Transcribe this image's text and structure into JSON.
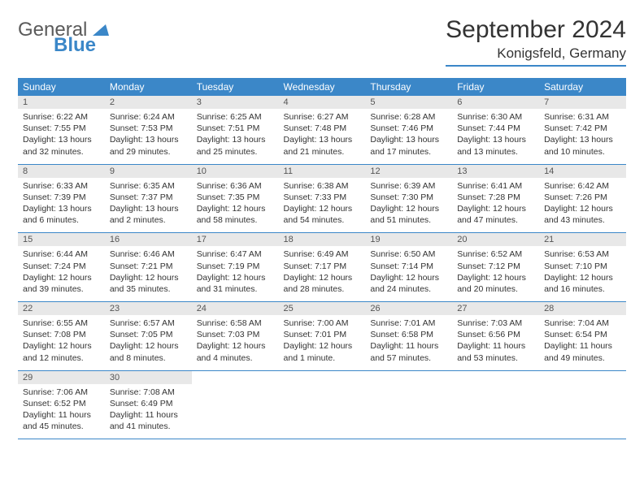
{
  "logo": {
    "line1": "General",
    "line2": "Blue"
  },
  "title": "September 2024",
  "location": "Konigsfeld, Germany",
  "colors": {
    "brand": "#3b87c8",
    "header_bg": "#3b87c8",
    "header_text": "#ffffff",
    "daynum_bg": "#e8e8e8",
    "text": "#333333",
    "logo_gray": "#5a5a5a"
  },
  "weekdays": [
    "Sunday",
    "Monday",
    "Tuesday",
    "Wednesday",
    "Thursday",
    "Friday",
    "Saturday"
  ],
  "weeks": [
    [
      {
        "n": "1",
        "sr": "Sunrise: 6:22 AM",
        "ss": "Sunset: 7:55 PM",
        "dl": "Daylight: 13 hours and 32 minutes."
      },
      {
        "n": "2",
        "sr": "Sunrise: 6:24 AM",
        "ss": "Sunset: 7:53 PM",
        "dl": "Daylight: 13 hours and 29 minutes."
      },
      {
        "n": "3",
        "sr": "Sunrise: 6:25 AM",
        "ss": "Sunset: 7:51 PM",
        "dl": "Daylight: 13 hours and 25 minutes."
      },
      {
        "n": "4",
        "sr": "Sunrise: 6:27 AM",
        "ss": "Sunset: 7:48 PM",
        "dl": "Daylight: 13 hours and 21 minutes."
      },
      {
        "n": "5",
        "sr": "Sunrise: 6:28 AM",
        "ss": "Sunset: 7:46 PM",
        "dl": "Daylight: 13 hours and 17 minutes."
      },
      {
        "n": "6",
        "sr": "Sunrise: 6:30 AM",
        "ss": "Sunset: 7:44 PM",
        "dl": "Daylight: 13 hours and 13 minutes."
      },
      {
        "n": "7",
        "sr": "Sunrise: 6:31 AM",
        "ss": "Sunset: 7:42 PM",
        "dl": "Daylight: 13 hours and 10 minutes."
      }
    ],
    [
      {
        "n": "8",
        "sr": "Sunrise: 6:33 AM",
        "ss": "Sunset: 7:39 PM",
        "dl": "Daylight: 13 hours and 6 minutes."
      },
      {
        "n": "9",
        "sr": "Sunrise: 6:35 AM",
        "ss": "Sunset: 7:37 PM",
        "dl": "Daylight: 13 hours and 2 minutes."
      },
      {
        "n": "10",
        "sr": "Sunrise: 6:36 AM",
        "ss": "Sunset: 7:35 PM",
        "dl": "Daylight: 12 hours and 58 minutes."
      },
      {
        "n": "11",
        "sr": "Sunrise: 6:38 AM",
        "ss": "Sunset: 7:33 PM",
        "dl": "Daylight: 12 hours and 54 minutes."
      },
      {
        "n": "12",
        "sr": "Sunrise: 6:39 AM",
        "ss": "Sunset: 7:30 PM",
        "dl": "Daylight: 12 hours and 51 minutes."
      },
      {
        "n": "13",
        "sr": "Sunrise: 6:41 AM",
        "ss": "Sunset: 7:28 PM",
        "dl": "Daylight: 12 hours and 47 minutes."
      },
      {
        "n": "14",
        "sr": "Sunrise: 6:42 AM",
        "ss": "Sunset: 7:26 PM",
        "dl": "Daylight: 12 hours and 43 minutes."
      }
    ],
    [
      {
        "n": "15",
        "sr": "Sunrise: 6:44 AM",
        "ss": "Sunset: 7:24 PM",
        "dl": "Daylight: 12 hours and 39 minutes."
      },
      {
        "n": "16",
        "sr": "Sunrise: 6:46 AM",
        "ss": "Sunset: 7:21 PM",
        "dl": "Daylight: 12 hours and 35 minutes."
      },
      {
        "n": "17",
        "sr": "Sunrise: 6:47 AM",
        "ss": "Sunset: 7:19 PM",
        "dl": "Daylight: 12 hours and 31 minutes."
      },
      {
        "n": "18",
        "sr": "Sunrise: 6:49 AM",
        "ss": "Sunset: 7:17 PM",
        "dl": "Daylight: 12 hours and 28 minutes."
      },
      {
        "n": "19",
        "sr": "Sunrise: 6:50 AM",
        "ss": "Sunset: 7:14 PM",
        "dl": "Daylight: 12 hours and 24 minutes."
      },
      {
        "n": "20",
        "sr": "Sunrise: 6:52 AM",
        "ss": "Sunset: 7:12 PM",
        "dl": "Daylight: 12 hours and 20 minutes."
      },
      {
        "n": "21",
        "sr": "Sunrise: 6:53 AM",
        "ss": "Sunset: 7:10 PM",
        "dl": "Daylight: 12 hours and 16 minutes."
      }
    ],
    [
      {
        "n": "22",
        "sr": "Sunrise: 6:55 AM",
        "ss": "Sunset: 7:08 PM",
        "dl": "Daylight: 12 hours and 12 minutes."
      },
      {
        "n": "23",
        "sr": "Sunrise: 6:57 AM",
        "ss": "Sunset: 7:05 PM",
        "dl": "Daylight: 12 hours and 8 minutes."
      },
      {
        "n": "24",
        "sr": "Sunrise: 6:58 AM",
        "ss": "Sunset: 7:03 PM",
        "dl": "Daylight: 12 hours and 4 minutes."
      },
      {
        "n": "25",
        "sr": "Sunrise: 7:00 AM",
        "ss": "Sunset: 7:01 PM",
        "dl": "Daylight: 12 hours and 1 minute."
      },
      {
        "n": "26",
        "sr": "Sunrise: 7:01 AM",
        "ss": "Sunset: 6:58 PM",
        "dl": "Daylight: 11 hours and 57 minutes."
      },
      {
        "n": "27",
        "sr": "Sunrise: 7:03 AM",
        "ss": "Sunset: 6:56 PM",
        "dl": "Daylight: 11 hours and 53 minutes."
      },
      {
        "n": "28",
        "sr": "Sunrise: 7:04 AM",
        "ss": "Sunset: 6:54 PM",
        "dl": "Daylight: 11 hours and 49 minutes."
      }
    ],
    [
      {
        "n": "29",
        "sr": "Sunrise: 7:06 AM",
        "ss": "Sunset: 6:52 PM",
        "dl": "Daylight: 11 hours and 45 minutes."
      },
      {
        "n": "30",
        "sr": "Sunrise: 7:08 AM",
        "ss": "Sunset: 6:49 PM",
        "dl": "Daylight: 11 hours and 41 minutes."
      },
      {
        "empty": true
      },
      {
        "empty": true
      },
      {
        "empty": true
      },
      {
        "empty": true
      },
      {
        "empty": true
      }
    ]
  ]
}
